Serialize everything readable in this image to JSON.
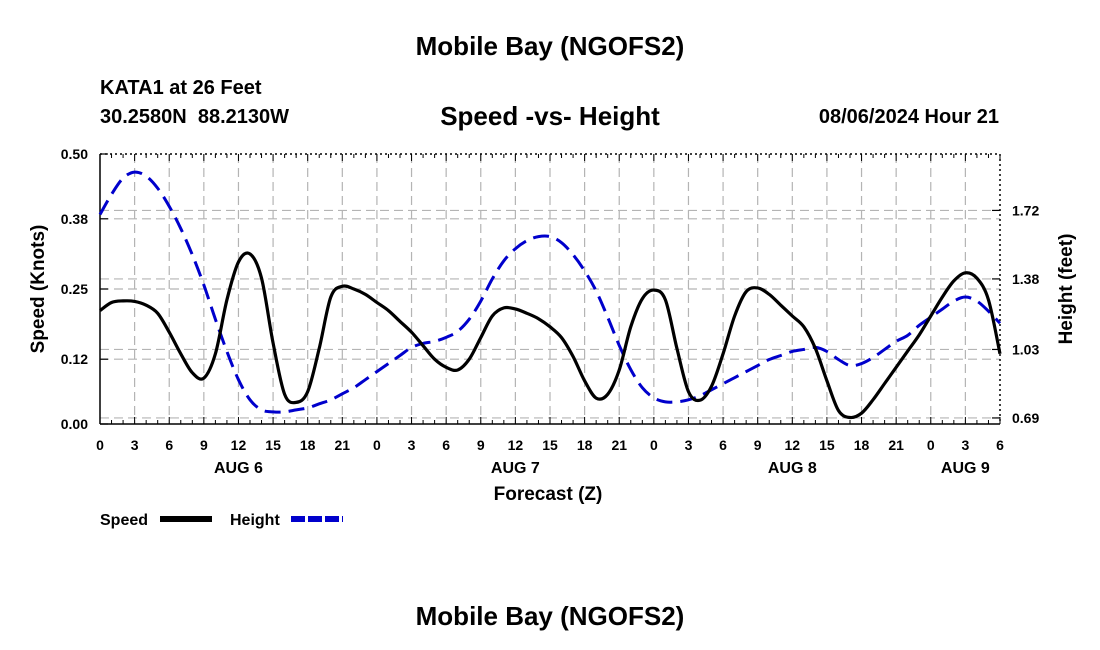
{
  "header": {
    "title": "Mobile Bay (NGOFS2)",
    "station": "KATA1 at 26 Feet",
    "coords": "30.2580N  88.2130W",
    "chart_title": "Speed -vs- Height",
    "timestamp": "08/06/2024 Hour 21"
  },
  "footer": {
    "title": "Mobile Bay (NGOFS2)"
  },
  "chart_data": {
    "type": "line",
    "title": "Speed -vs- Height",
    "xlabel": "Forecast (Z)",
    "ylabel": "Speed (Knots)",
    "y2label": "Height (feet)",
    "x_unit": "hours since Aug 6 00Z",
    "xlim": [
      0,
      78
    ],
    "ylim": [
      0,
      0.5
    ],
    "y2lim": [
      0.66,
      2.0
    ],
    "x_ticks": [
      0,
      3,
      6,
      9,
      12,
      15,
      18,
      21,
      24,
      27,
      30,
      33,
      36,
      39,
      42,
      45,
      48,
      51,
      54,
      57,
      60,
      63,
      66,
      69,
      72,
      75,
      78
    ],
    "x_tick_labels": [
      "0",
      "3",
      "6",
      "9",
      "12",
      "15",
      "18",
      "21",
      "0",
      "3",
      "6",
      "9",
      "12",
      "15",
      "18",
      "21",
      "0",
      "3",
      "6",
      "9",
      "12",
      "15",
      "18",
      "21",
      "0",
      "3",
      "6"
    ],
    "day_labels": [
      {
        "x": 12,
        "label": "AUG 6"
      },
      {
        "x": 36,
        "label": "AUG 7"
      },
      {
        "x": 60,
        "label": "AUG 8"
      },
      {
        "x": 75,
        "label": "AUG 9"
      }
    ],
    "y_ticks": [
      0.0,
      0.12,
      0.25,
      0.38,
      0.5
    ],
    "y_tick_labels": [
      "0.00",
      "0.12",
      "0.25",
      "0.38",
      "0.50"
    ],
    "y2_ticks": [
      0.69,
      1.03,
      1.38,
      1.72
    ],
    "y2_tick_labels": [
      "0.69",
      "1.03",
      "1.38",
      "1.72"
    ],
    "grid": true,
    "legend": [
      {
        "name": "Speed",
        "color": "#000000",
        "dashed": false
      },
      {
        "name": "Height",
        "color": "#0000cc",
        "dashed": true
      }
    ],
    "series": [
      {
        "name": "Speed",
        "axis": "left",
        "color": "#000000",
        "x": [
          0,
          1,
          2,
          3,
          4,
          5,
          6,
          7,
          8,
          9,
          10,
          11,
          12,
          13,
          14,
          15,
          16,
          17,
          18,
          19,
          20,
          21,
          22,
          23,
          24,
          25,
          26,
          27,
          28,
          29,
          30,
          31,
          32,
          33,
          34,
          35,
          36,
          37,
          38,
          39,
          40,
          41,
          42,
          43,
          44,
          45,
          46,
          47,
          48,
          49,
          50,
          51,
          52,
          53,
          54,
          55,
          56,
          57,
          58,
          59,
          60,
          61,
          62,
          63,
          64,
          65,
          66,
          67,
          68,
          69,
          70,
          71,
          72,
          73,
          74,
          75,
          76,
          77,
          78
        ],
        "values": [
          0.21,
          0.225,
          0.228,
          0.227,
          0.22,
          0.205,
          0.17,
          0.13,
          0.095,
          0.085,
          0.13,
          0.23,
          0.3,
          0.315,
          0.27,
          0.15,
          0.055,
          0.04,
          0.06,
          0.14,
          0.235,
          0.255,
          0.25,
          0.24,
          0.225,
          0.21,
          0.19,
          0.17,
          0.145,
          0.12,
          0.105,
          0.1,
          0.12,
          0.16,
          0.2,
          0.215,
          0.213,
          0.205,
          0.195,
          0.18,
          0.16,
          0.125,
          0.08,
          0.048,
          0.055,
          0.1,
          0.18,
          0.232,
          0.248,
          0.23,
          0.14,
          0.06,
          0.044,
          0.07,
          0.13,
          0.2,
          0.245,
          0.252,
          0.24,
          0.22,
          0.2,
          0.18,
          0.14,
          0.08,
          0.025,
          0.012,
          0.02,
          0.045,
          0.075,
          0.105,
          0.135,
          0.165,
          0.2,
          0.235,
          0.265,
          0.28,
          0.27,
          0.23,
          0.13
        ]
      },
      {
        "name": "Height",
        "axis": "right",
        "color": "#0000cc",
        "x": [
          0,
          1,
          2,
          3,
          4,
          5,
          6,
          7,
          8,
          9,
          10,
          11,
          12,
          13,
          14,
          15,
          16,
          17,
          18,
          19,
          20,
          21,
          22,
          23,
          24,
          25,
          26,
          27,
          28,
          29,
          30,
          31,
          32,
          33,
          34,
          35,
          36,
          37,
          38,
          39,
          40,
          41,
          42,
          43,
          44,
          45,
          46,
          47,
          48,
          49,
          50,
          51,
          52,
          53,
          54,
          55,
          56,
          57,
          58,
          59,
          60,
          61,
          62,
          63,
          64,
          65,
          66,
          67,
          68,
          69,
          70,
          71,
          72,
          73,
          74,
          75,
          76,
          77,
          78
        ],
        "values": [
          1.7,
          1.8,
          1.88,
          1.91,
          1.89,
          1.83,
          1.74,
          1.63,
          1.5,
          1.35,
          1.18,
          1.02,
          0.88,
          0.78,
          0.73,
          0.72,
          0.72,
          0.73,
          0.74,
          0.76,
          0.78,
          0.81,
          0.84,
          0.88,
          0.92,
          0.96,
          1.0,
          1.04,
          1.06,
          1.07,
          1.09,
          1.12,
          1.18,
          1.27,
          1.38,
          1.47,
          1.53,
          1.57,
          1.59,
          1.59,
          1.56,
          1.5,
          1.42,
          1.32,
          1.19,
          1.05,
          0.93,
          0.84,
          0.79,
          0.77,
          0.77,
          0.78,
          0.8,
          0.83,
          0.86,
          0.89,
          0.92,
          0.95,
          0.98,
          1.0,
          1.02,
          1.03,
          1.04,
          1.02,
          0.98,
          0.95,
          0.96,
          0.99,
          1.03,
          1.07,
          1.1,
          1.15,
          1.19,
          1.23,
          1.27,
          1.29,
          1.27,
          1.22,
          1.16
        ]
      }
    ]
  }
}
